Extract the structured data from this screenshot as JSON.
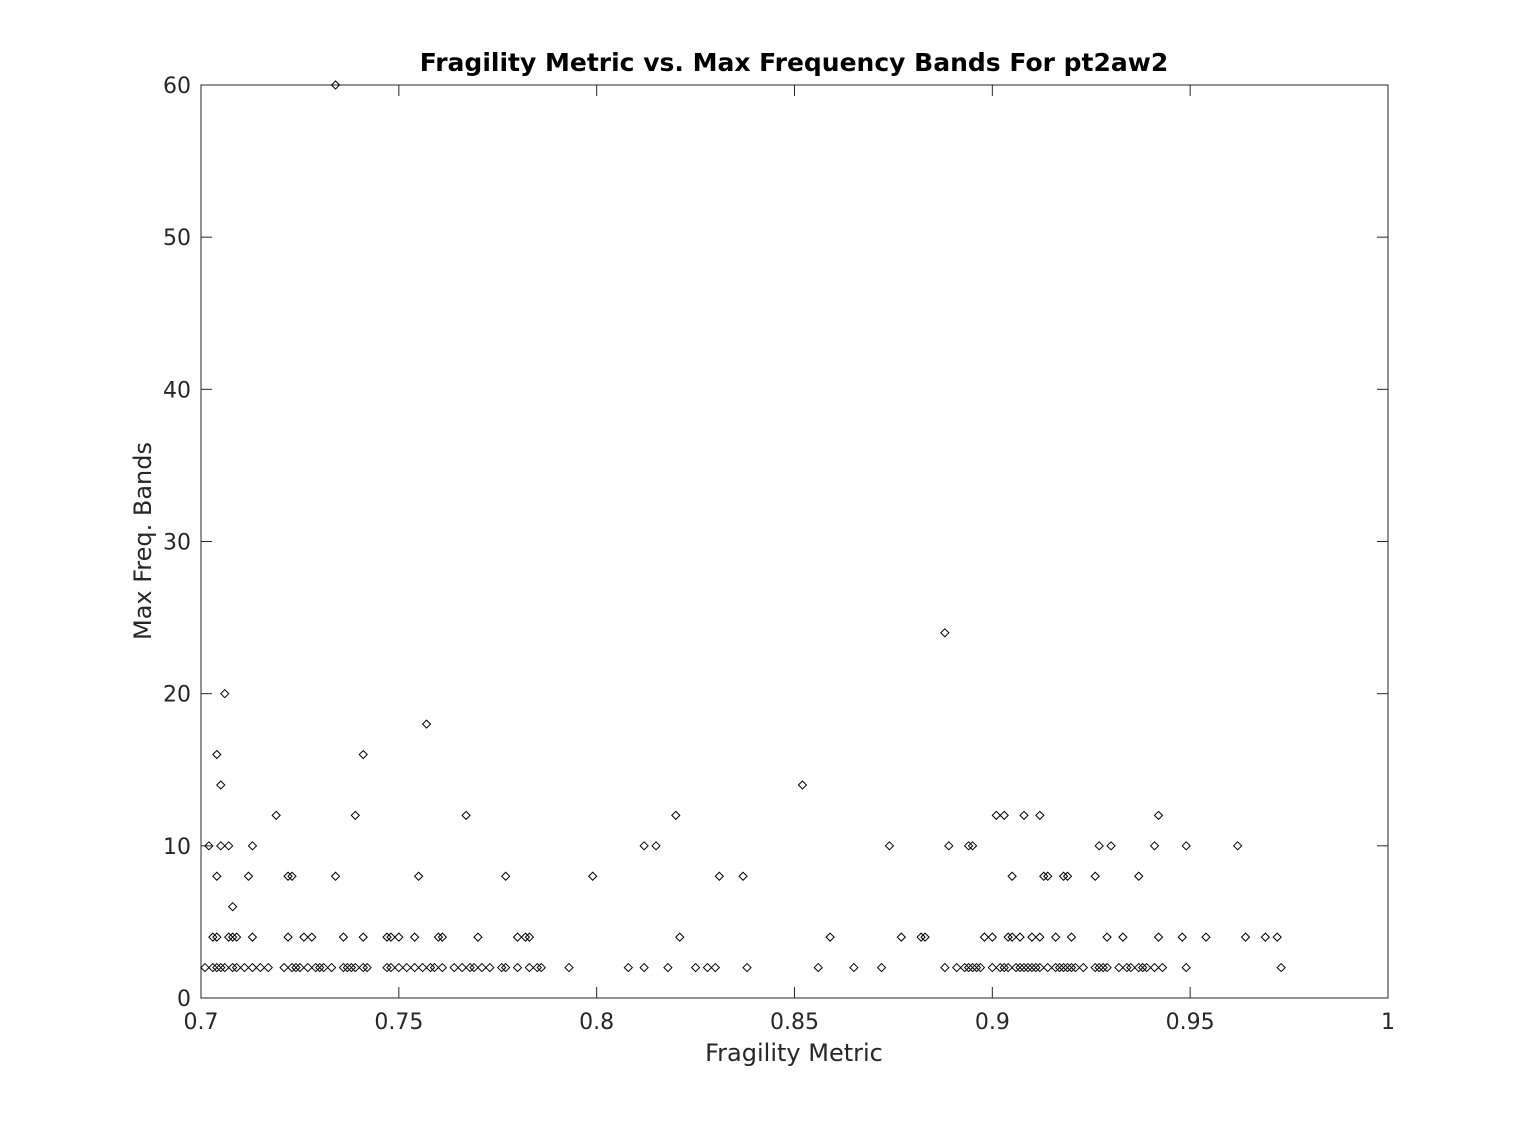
{
  "chart_data": {
    "type": "scatter",
    "title": "Fragility Metric vs. Max Frequency Bands For pt2aw2",
    "xlabel": "Fragility Metric",
    "ylabel": "Max Freq. Bands",
    "xlim": [
      0.7,
      1
    ],
    "ylim": [
      0,
      60
    ],
    "xticks": [
      "0.7",
      "0.75",
      "0.8",
      "0.85",
      "0.9",
      "0.95",
      "1"
    ],
    "yticks": [
      "0",
      "10",
      "20",
      "30",
      "40",
      "50",
      "60"
    ],
    "xtick_values": [
      0.7,
      0.75,
      0.8,
      0.85,
      0.9,
      0.95,
      1
    ],
    "ytick_values": [
      0,
      10,
      20,
      30,
      40,
      50,
      60
    ],
    "grid": false,
    "marker": "diamond",
    "marker_color": "#000000",
    "points": [
      [
        0.734,
        60
      ],
      [
        0.888,
        24
      ],
      [
        0.706,
        20
      ],
      [
        0.757,
        18
      ],
      [
        0.704,
        16
      ],
      [
        0.741,
        16
      ],
      [
        0.705,
        14
      ],
      [
        0.852,
        14
      ],
      [
        0.719,
        12
      ],
      [
        0.739,
        12
      ],
      [
        0.767,
        12
      ],
      [
        0.82,
        12
      ],
      [
        0.901,
        12
      ],
      [
        0.903,
        12
      ],
      [
        0.908,
        12
      ],
      [
        0.912,
        12
      ],
      [
        0.942,
        12
      ],
      [
        0.702,
        10
      ],
      [
        0.705,
        10
      ],
      [
        0.707,
        10
      ],
      [
        0.713,
        10
      ],
      [
        0.812,
        10
      ],
      [
        0.815,
        10
      ],
      [
        0.874,
        10
      ],
      [
        0.889,
        10
      ],
      [
        0.894,
        10
      ],
      [
        0.895,
        10
      ],
      [
        0.927,
        10
      ],
      [
        0.93,
        10
      ],
      [
        0.941,
        10
      ],
      [
        0.949,
        10
      ],
      [
        0.962,
        10
      ],
      [
        0.704,
        8
      ],
      [
        0.712,
        8
      ],
      [
        0.722,
        8
      ],
      [
        0.723,
        8
      ],
      [
        0.734,
        8
      ],
      [
        0.755,
        8
      ],
      [
        0.777,
        8
      ],
      [
        0.799,
        8
      ],
      [
        0.831,
        8
      ],
      [
        0.837,
        8
      ],
      [
        0.905,
        8
      ],
      [
        0.913,
        8
      ],
      [
        0.914,
        8
      ],
      [
        0.918,
        8
      ],
      [
        0.919,
        8
      ],
      [
        0.926,
        8
      ],
      [
        0.937,
        8
      ],
      [
        0.708,
        6
      ],
      [
        0.703,
        4
      ],
      [
        0.704,
        4
      ],
      [
        0.707,
        4
      ],
      [
        0.708,
        4
      ],
      [
        0.709,
        4
      ],
      [
        0.713,
        4
      ],
      [
        0.722,
        4
      ],
      [
        0.726,
        4
      ],
      [
        0.728,
        4
      ],
      [
        0.736,
        4
      ],
      [
        0.741,
        4
      ],
      [
        0.747,
        4
      ],
      [
        0.748,
        4
      ],
      [
        0.75,
        4
      ],
      [
        0.754,
        4
      ],
      [
        0.76,
        4
      ],
      [
        0.761,
        4
      ],
      [
        0.77,
        4
      ],
      [
        0.78,
        4
      ],
      [
        0.782,
        4
      ],
      [
        0.783,
        4
      ],
      [
        0.821,
        4
      ],
      [
        0.859,
        4
      ],
      [
        0.877,
        4
      ],
      [
        0.882,
        4
      ],
      [
        0.883,
        4
      ],
      [
        0.898,
        4
      ],
      [
        0.9,
        4
      ],
      [
        0.904,
        4
      ],
      [
        0.905,
        4
      ],
      [
        0.907,
        4
      ],
      [
        0.91,
        4
      ],
      [
        0.912,
        4
      ],
      [
        0.916,
        4
      ],
      [
        0.92,
        4
      ],
      [
        0.929,
        4
      ],
      [
        0.933,
        4
      ],
      [
        0.942,
        4
      ],
      [
        0.948,
        4
      ],
      [
        0.954,
        4
      ],
      [
        0.964,
        4
      ],
      [
        0.969,
        4
      ],
      [
        0.972,
        4
      ],
      [
        0.701,
        2
      ],
      [
        0.703,
        2
      ],
      [
        0.704,
        2
      ],
      [
        0.705,
        2
      ],
      [
        0.706,
        2
      ],
      [
        0.708,
        2
      ],
      [
        0.709,
        2
      ],
      [
        0.711,
        2
      ],
      [
        0.713,
        2
      ],
      [
        0.715,
        2
      ],
      [
        0.717,
        2
      ],
      [
        0.721,
        2
      ],
      [
        0.723,
        2
      ],
      [
        0.724,
        2
      ],
      [
        0.725,
        2
      ],
      [
        0.727,
        2
      ],
      [
        0.729,
        2
      ],
      [
        0.73,
        2
      ],
      [
        0.731,
        2
      ],
      [
        0.733,
        2
      ],
      [
        0.736,
        2
      ],
      [
        0.737,
        2
      ],
      [
        0.738,
        2
      ],
      [
        0.739,
        2
      ],
      [
        0.741,
        2
      ],
      [
        0.742,
        2
      ],
      [
        0.747,
        2
      ],
      [
        0.748,
        2
      ],
      [
        0.75,
        2
      ],
      [
        0.752,
        2
      ],
      [
        0.754,
        2
      ],
      [
        0.756,
        2
      ],
      [
        0.758,
        2
      ],
      [
        0.759,
        2
      ],
      [
        0.761,
        2
      ],
      [
        0.764,
        2
      ],
      [
        0.766,
        2
      ],
      [
        0.768,
        2
      ],
      [
        0.769,
        2
      ],
      [
        0.771,
        2
      ],
      [
        0.773,
        2
      ],
      [
        0.776,
        2
      ],
      [
        0.777,
        2
      ],
      [
        0.78,
        2
      ],
      [
        0.783,
        2
      ],
      [
        0.785,
        2
      ],
      [
        0.786,
        2
      ],
      [
        0.793,
        2
      ],
      [
        0.808,
        2
      ],
      [
        0.812,
        2
      ],
      [
        0.818,
        2
      ],
      [
        0.825,
        2
      ],
      [
        0.828,
        2
      ],
      [
        0.83,
        2
      ],
      [
        0.838,
        2
      ],
      [
        0.856,
        2
      ],
      [
        0.865,
        2
      ],
      [
        0.872,
        2
      ],
      [
        0.888,
        2
      ],
      [
        0.891,
        2
      ],
      [
        0.893,
        2
      ],
      [
        0.894,
        2
      ],
      [
        0.895,
        2
      ],
      [
        0.896,
        2
      ],
      [
        0.897,
        2
      ],
      [
        0.9,
        2
      ],
      [
        0.902,
        2
      ],
      [
        0.903,
        2
      ],
      [
        0.904,
        2
      ],
      [
        0.906,
        2
      ],
      [
        0.907,
        2
      ],
      [
        0.908,
        2
      ],
      [
        0.909,
        2
      ],
      [
        0.91,
        2
      ],
      [
        0.911,
        2
      ],
      [
        0.912,
        2
      ],
      [
        0.914,
        2
      ],
      [
        0.916,
        2
      ],
      [
        0.917,
        2
      ],
      [
        0.918,
        2
      ],
      [
        0.919,
        2
      ],
      [
        0.92,
        2
      ],
      [
        0.921,
        2
      ],
      [
        0.923,
        2
      ],
      [
        0.926,
        2
      ],
      [
        0.927,
        2
      ],
      [
        0.928,
        2
      ],
      [
        0.929,
        2
      ],
      [
        0.932,
        2
      ],
      [
        0.934,
        2
      ],
      [
        0.935,
        2
      ],
      [
        0.937,
        2
      ],
      [
        0.938,
        2
      ],
      [
        0.939,
        2
      ],
      [
        0.941,
        2
      ],
      [
        0.943,
        2
      ],
      [
        0.949,
        2
      ],
      [
        0.973,
        2
      ]
    ]
  }
}
